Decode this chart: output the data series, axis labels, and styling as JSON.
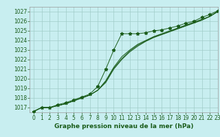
{
  "title": "Graphe pression niveau de la mer (hPa)",
  "bg_color": "#c8eef0",
  "grid_color": "#a0ccc8",
  "line_color": "#1a5c1a",
  "xlim": [
    -0.5,
    23
  ],
  "ylim": [
    1016.5,
    1027.5
  ],
  "xticks": [
    0,
    1,
    2,
    3,
    4,
    5,
    6,
    7,
    8,
    9,
    10,
    11,
    12,
    13,
    14,
    15,
    16,
    17,
    18,
    19,
    20,
    21,
    22,
    23
  ],
  "yticks": [
    1017,
    1018,
    1019,
    1020,
    1021,
    1022,
    1023,
    1024,
    1025,
    1026,
    1027
  ],
  "series": [
    [
      1016.6,
      1017.0,
      1017.0,
      1017.3,
      1017.5,
      1017.8,
      1018.1,
      1018.4,
      1019.2,
      1021.0,
      1023.0,
      1024.7,
      1024.7,
      1024.7,
      1024.8,
      1025.0,
      1025.1,
      1025.3,
      1025.5,
      1025.8,
      1026.0,
      1026.4,
      1026.7,
      1027.1
    ],
    [
      1016.6,
      1017.0,
      1017.0,
      1017.2,
      1017.4,
      1017.7,
      1018.0,
      1018.3,
      1018.8,
      1019.8,
      1021.2,
      1022.3,
      1023.0,
      1023.6,
      1024.0,
      1024.4,
      1024.7,
      1025.0,
      1025.3,
      1025.6,
      1025.9,
      1026.2,
      1026.5,
      1027.0
    ],
    [
      1016.6,
      1017.0,
      1017.0,
      1017.2,
      1017.4,
      1017.7,
      1018.0,
      1018.3,
      1018.8,
      1019.6,
      1021.0,
      1022.0,
      1022.8,
      1023.4,
      1023.9,
      1024.3,
      1024.6,
      1024.9,
      1025.2,
      1025.5,
      1025.8,
      1026.1,
      1026.5,
      1027.0
    ],
    [
      1016.6,
      1017.0,
      1017.0,
      1017.2,
      1017.4,
      1017.7,
      1018.0,
      1018.3,
      1018.8,
      1019.7,
      1021.1,
      1022.1,
      1022.9,
      1023.5,
      1023.95,
      1024.35,
      1024.65,
      1024.95,
      1025.25,
      1025.55,
      1025.85,
      1026.15,
      1026.5,
      1027.05
    ]
  ],
  "title_fontsize": 6.5,
  "tick_fontsize": 5.5
}
